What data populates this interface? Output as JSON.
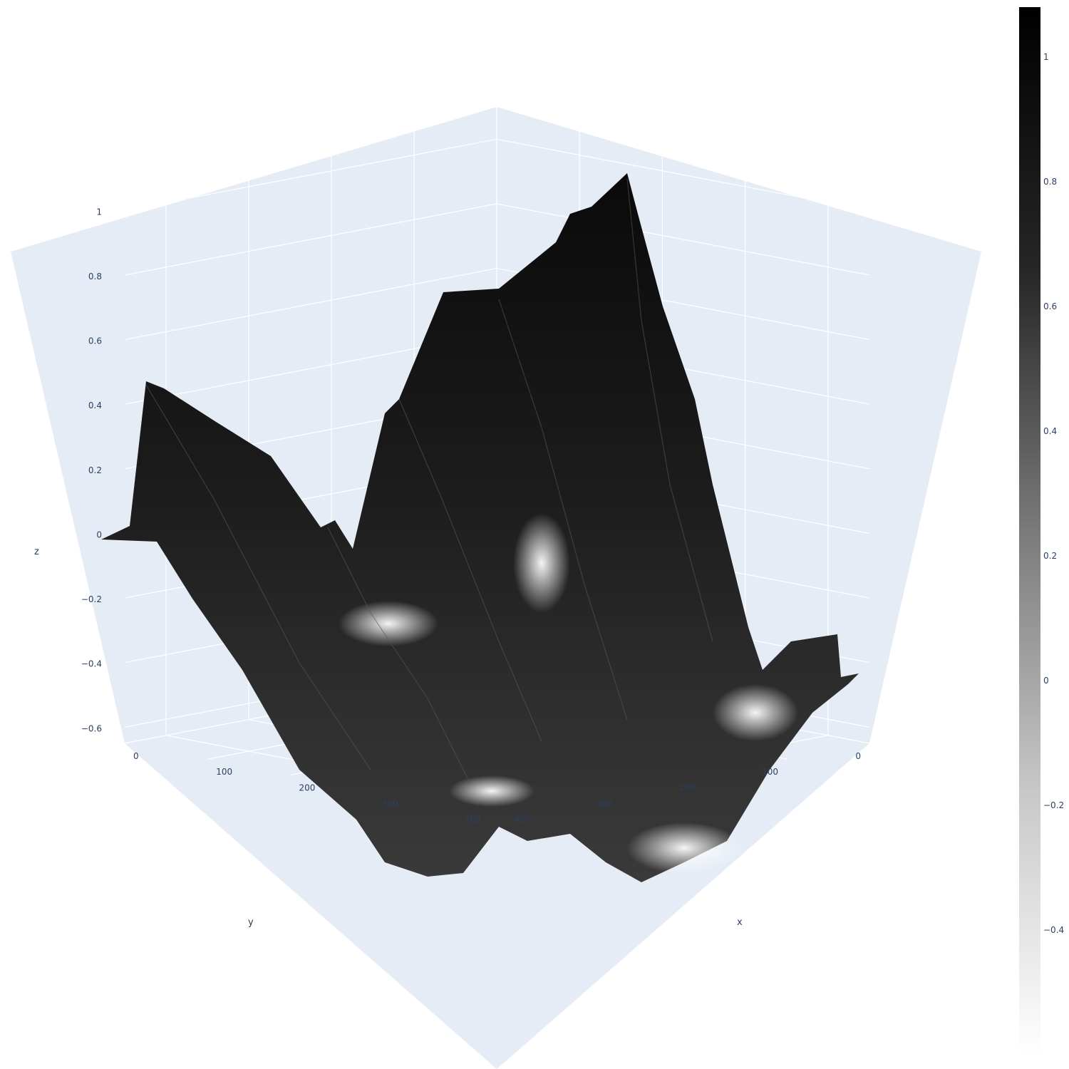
{
  "chart_data": {
    "type": "surface",
    "title": "",
    "colorscale": "greys",
    "axes": {
      "x": {
        "title": "x",
        "ticks": [
          "0",
          "100",
          "200",
          "300",
          "400"
        ],
        "range": [
          0,
          450
        ]
      },
      "y": {
        "title": "y",
        "ticks": [
          "0",
          "100",
          "200",
          "300",
          "400"
        ],
        "range": [
          0,
          450
        ]
      },
      "z": {
        "title": "z",
        "ticks": [
          "−0.6",
          "−0.4",
          "−0.2",
          "0",
          "0.2",
          "0.4",
          "0.6",
          "0.8",
          "1"
        ],
        "range": [
          -0.65,
          1.1
        ]
      }
    },
    "colorbar": {
      "ticks": [
        "1",
        "0.8",
        "0.6",
        "0.4",
        "0.2",
        "0",
        "−0.2",
        "−0.4"
      ],
      "range": [
        -0.6,
        1.08
      ]
    },
    "surface_outline": [
      {
        "x": 0,
        "y": 380,
        "z": 0.12
      },
      {
        "x": 0,
        "y": 300,
        "z": 0.2
      },
      {
        "x": 0,
        "y": 250,
        "z": 0.72
      },
      {
        "x": 0,
        "y": 200,
        "z": 0.55
      },
      {
        "x": 0,
        "y": 140,
        "z": 0.25
      },
      {
        "x": 0,
        "y": 100,
        "z": 0.48
      },
      {
        "x": 0,
        "y": 60,
        "z": 0.8
      },
      {
        "x": 0,
        "y": 30,
        "z": 1.05
      },
      {
        "x": 30,
        "y": 0,
        "z": 1.02
      },
      {
        "x": 90,
        "y": 0,
        "z": 0.55
      },
      {
        "x": 130,
        "y": 0,
        "z": 0.1
      },
      {
        "x": 160,
        "y": 0,
        "z": 0.05
      },
      {
        "x": 200,
        "y": 0,
        "z": 0.0
      }
    ],
    "peak": {
      "x": 20,
      "y": 40,
      "z": 1.06
    }
  }
}
